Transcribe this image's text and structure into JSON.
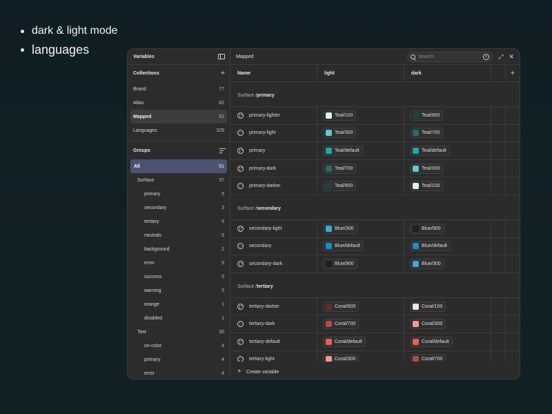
{
  "bullets": [
    "dark & light mode",
    "languages"
  ],
  "sidebar": {
    "title": "Variables",
    "collections_title": "Collections",
    "collections": [
      {
        "label": "Brand",
        "count": "77"
      },
      {
        "label": "Alias",
        "count": "62"
      },
      {
        "label": "Mapped",
        "count": "91",
        "active": true
      },
      {
        "label": "Languages",
        "count": "329"
      }
    ],
    "groups_title": "Groups",
    "groups": [
      {
        "label": "All",
        "count": "91",
        "level": 0,
        "active": true
      },
      {
        "label": "Surface",
        "count": "37",
        "level": 1
      },
      {
        "label": "primary",
        "count": "5",
        "level": 2
      },
      {
        "label": "secondary",
        "count": "3",
        "level": 2
      },
      {
        "label": "tertiary",
        "count": "5",
        "level": 2
      },
      {
        "label": "neutrals",
        "count": "5",
        "level": 2
      },
      {
        "label": "background",
        "count": "2",
        "level": 2
      },
      {
        "label": "error",
        "count": "5",
        "level": 2
      },
      {
        "label": "success",
        "count": "5",
        "level": 2
      },
      {
        "label": "warning",
        "count": "5",
        "level": 2
      },
      {
        "label": "orange",
        "count": "1",
        "level": 2
      },
      {
        "label": "disabled",
        "count": "1",
        "level": 2
      },
      {
        "label": "Text",
        "count": "30",
        "level": 1
      },
      {
        "label": "on-color",
        "count": "4",
        "level": 2
      },
      {
        "label": "primary",
        "count": "4",
        "level": 2
      },
      {
        "label": "error",
        "count": "4",
        "level": 2
      }
    ]
  },
  "main": {
    "title": "Mapped",
    "search_placeholder": "Search",
    "columns": {
      "name": "Name",
      "light": "light",
      "dark": "dark"
    },
    "create_label": "Create variable",
    "sections": [
      {
        "prefix": "Surface / ",
        "group": "primary",
        "rows": [
          {
            "name": "primary-lighter",
            "light": {
              "label": "Teal/100",
              "color": "#d3f6f7"
            },
            "dark": {
              "label": "Teal/900",
              "color": "#1c4448"
            }
          },
          {
            "name": "primary-light",
            "light": {
              "label": "Teal/300",
              "color": "#5fcbd2"
            },
            "dark": {
              "label": "Teal/700",
              "color": "#226a70"
            }
          },
          {
            "name": "primary",
            "light": {
              "label": "Teal/default",
              "color": "#1ba5ad"
            },
            "dark": {
              "label": "Teal/default",
              "color": "#1ba5ad"
            }
          },
          {
            "name": "primary-dark",
            "light": {
              "label": "Teal/700",
              "color": "#226a70"
            },
            "dark": {
              "label": "Teal/300",
              "color": "#5fcbd2"
            }
          },
          {
            "name": "primary-darker",
            "light": {
              "label": "Teal/900",
              "color": "#1c4448"
            },
            "dark": {
              "label": "Teal/100",
              "color": "#d3f6f7"
            }
          }
        ]
      },
      {
        "prefix": "Surface / ",
        "group": "secondary",
        "rows": [
          {
            "name": "secondary-light",
            "light": {
              "label": "Blue/300",
              "color": "#3aa9e0"
            },
            "dark": {
              "label": "Blue/900",
              "color": "#15222b"
            }
          },
          {
            "name": "secondary",
            "light": {
              "label": "Blue/default",
              "color": "#1390cf"
            },
            "dark": {
              "label": "Blue/default",
              "color": "#1390cf"
            }
          },
          {
            "name": "secondary-dark",
            "light": {
              "label": "Blue/900",
              "color": "#15222b"
            },
            "dark": {
              "label": "Blue/300",
              "color": "#3aa9e0"
            }
          }
        ]
      },
      {
        "prefix": "Surface / ",
        "group": "tertiary",
        "rows": [
          {
            "name": "tertiary-darker",
            "light": {
              "label": "Coral/900",
              "color": "#6d2a26"
            },
            "dark": {
              "label": "Coral/100",
              "color": "#fde1dc"
            }
          },
          {
            "name": "tertiary-dark",
            "light": {
              "label": "Coral/700",
              "color": "#b64a41"
            },
            "dark": {
              "label": "Coral/300",
              "color": "#f19a8f"
            }
          },
          {
            "name": "tertiary-default",
            "light": {
              "label": "Coral/default",
              "color": "#ef5d4f"
            },
            "dark": {
              "label": "Coral/default",
              "color": "#ef5d4f"
            }
          },
          {
            "name": "tertiary-light",
            "light": {
              "label": "Coral/300",
              "color": "#f19a8f"
            },
            "dark": {
              "label": "Coral/700",
              "color": "#b64a41"
            }
          }
        ]
      }
    ]
  }
}
